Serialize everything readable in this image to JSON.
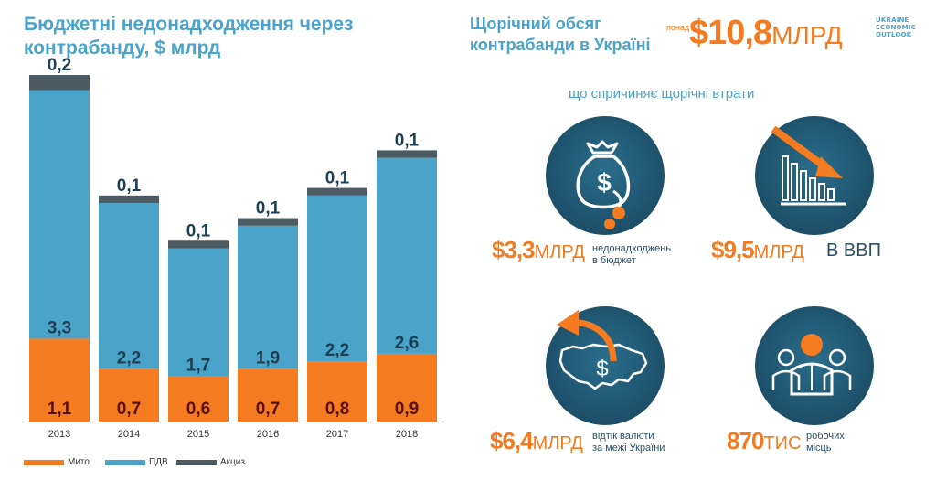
{
  "left_title": "Бюджетні недонадходження через контрабанду, $ млрд",
  "chart_data": {
    "type": "bar",
    "stacked": true,
    "title": "Бюджетні недонадходження через контрабанду, $ млрд",
    "categories": [
      "2013",
      "2014",
      "2015",
      "2016",
      "2017",
      "2018"
    ],
    "series": [
      {
        "name": "Мито",
        "color": "#f47b20",
        "values": [
          1.1,
          0.7,
          0.6,
          0.7,
          0.8,
          0.9
        ],
        "labels": [
          "1,1",
          "0,7",
          "0,6",
          "0,7",
          "0,8",
          "0,9"
        ]
      },
      {
        "name": "ПДВ",
        "color": "#4aa3c9",
        "values": [
          3.3,
          2.2,
          1.7,
          1.9,
          2.2,
          2.6
        ],
        "labels": [
          "3,3",
          "2,2",
          "1,7",
          "1,9",
          "2,2",
          "2,6"
        ]
      },
      {
        "name": "Акциз",
        "color": "#4d5b63",
        "values": [
          0.2,
          0.1,
          0.1,
          0.1,
          0.1,
          0.1
        ],
        "labels": [
          "0,2",
          "0,1",
          "0,1",
          "0,1",
          "0,1",
          "0,1"
        ]
      }
    ],
    "ylim": [
      0,
      4.6
    ],
    "grid": false,
    "legend_position": "bottom-left"
  },
  "legend": [
    {
      "label": "Мито",
      "color": "#f47b20"
    },
    {
      "label": "ПДВ",
      "color": "#4aa3c9"
    },
    {
      "label": "Акциз",
      "color": "#4d5b63"
    }
  ],
  "right": {
    "title": "Щорічний обсяг контрабанди в Україні",
    "ponad": "понад",
    "headline_value": "$10,8",
    "headline_unit": "МЛРД",
    "logo_lines": [
      "UKRAINE",
      "ECONOMIC",
      "OUTLOOK"
    ],
    "subtitle": "що спричиняє щорічні втрати",
    "stats": [
      {
        "value": "$3,3",
        "unit": "МЛРД",
        "desc_lines": [
          "недонадходжень",
          "в бюджет"
        ],
        "icon": "money-bag-icon"
      },
      {
        "value": "$9,5",
        "unit": "МЛРД",
        "desc": "В ВВП",
        "icon": "declining-chart-icon"
      },
      {
        "value": "$6,4",
        "unit": "МЛРД",
        "desc_lines": [
          "відтік валюти",
          "за межі України"
        ],
        "icon": "ukraine-map-outflow-icon"
      },
      {
        "value": "870",
        "unit": "ТИС",
        "desc_lines": [
          "робочих",
          "місць"
        ],
        "icon": "workers-icon"
      }
    ]
  },
  "colors": {
    "accent_blue": "#4aa3c9",
    "accent_orange": "#f47b20",
    "dark_navy": "#1d4f68",
    "dark_red_label": "#5a1010",
    "excise_gray": "#4d5b63"
  }
}
